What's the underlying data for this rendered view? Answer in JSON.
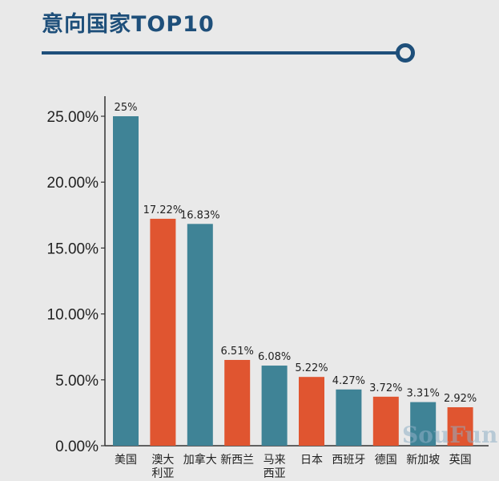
{
  "title": "意向国家TOP10",
  "watermark": "SouFun",
  "colors": {
    "teal": "#3f8396",
    "orange": "#e05530",
    "title": "#1e4f7a",
    "axis": "#333333"
  },
  "chart_data": {
    "type": "bar",
    "title": "意向国家TOP10",
    "xlabel": "",
    "ylabel": "",
    "ylim": [
      0,
      25
    ],
    "yticks": [
      "0.00%",
      "5.00%",
      "10.00%",
      "15.00%",
      "20.00%",
      "25.00%"
    ],
    "grid": false,
    "legend": "none",
    "categories": [
      "美国",
      "澳大\n利亚",
      "加拿大",
      "新西兰",
      "马来\n西亚",
      "日本",
      "西班牙",
      "德国",
      "新加坡",
      "英国"
    ],
    "values": [
      25,
      17.22,
      16.83,
      6.51,
      6.08,
      5.22,
      4.27,
      3.72,
      3.31,
      2.92
    ],
    "data_labels": [
      "25%",
      "17.22%",
      "16.83%",
      "6.51%",
      "6.08%",
      "5.22%",
      "4.27%",
      "3.72%",
      "3.31%",
      "2.92%"
    ],
    "bar_colors": [
      "teal",
      "orange",
      "teal",
      "orange",
      "teal",
      "orange",
      "teal",
      "orange",
      "teal",
      "orange"
    ]
  }
}
